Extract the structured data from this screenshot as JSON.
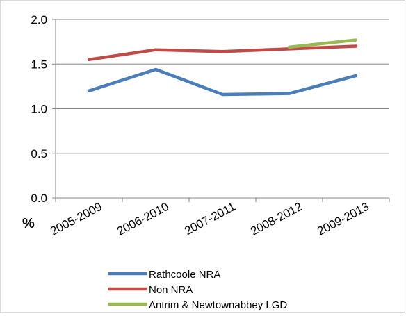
{
  "chart_data": {
    "type": "line",
    "categories": [
      "2005-2009",
      "2006-2010",
      "2007-2011",
      "2008-2012",
      "2009-2013"
    ],
    "series": [
      {
        "name": "Rathcoole NRA",
        "color": "#4a7ebb",
        "values": [
          1.2,
          1.44,
          1.16,
          1.17,
          1.37
        ]
      },
      {
        "name": "Non NRA",
        "color": "#be4b48",
        "values": [
          1.55,
          1.66,
          1.64,
          1.67,
          1.7
        ]
      },
      {
        "name": "Antrim & Newtownabbey LGD",
        "color": "#98b954",
        "values": [
          null,
          null,
          null,
          1.69,
          1.77
        ]
      }
    ],
    "ylabel": "%",
    "ylim": [
      0.0,
      2.0
    ],
    "yticks": [
      "0.0",
      "0.5",
      "1.0",
      "1.5",
      "2.0"
    ],
    "grid": true,
    "legend_position": "bottom"
  }
}
